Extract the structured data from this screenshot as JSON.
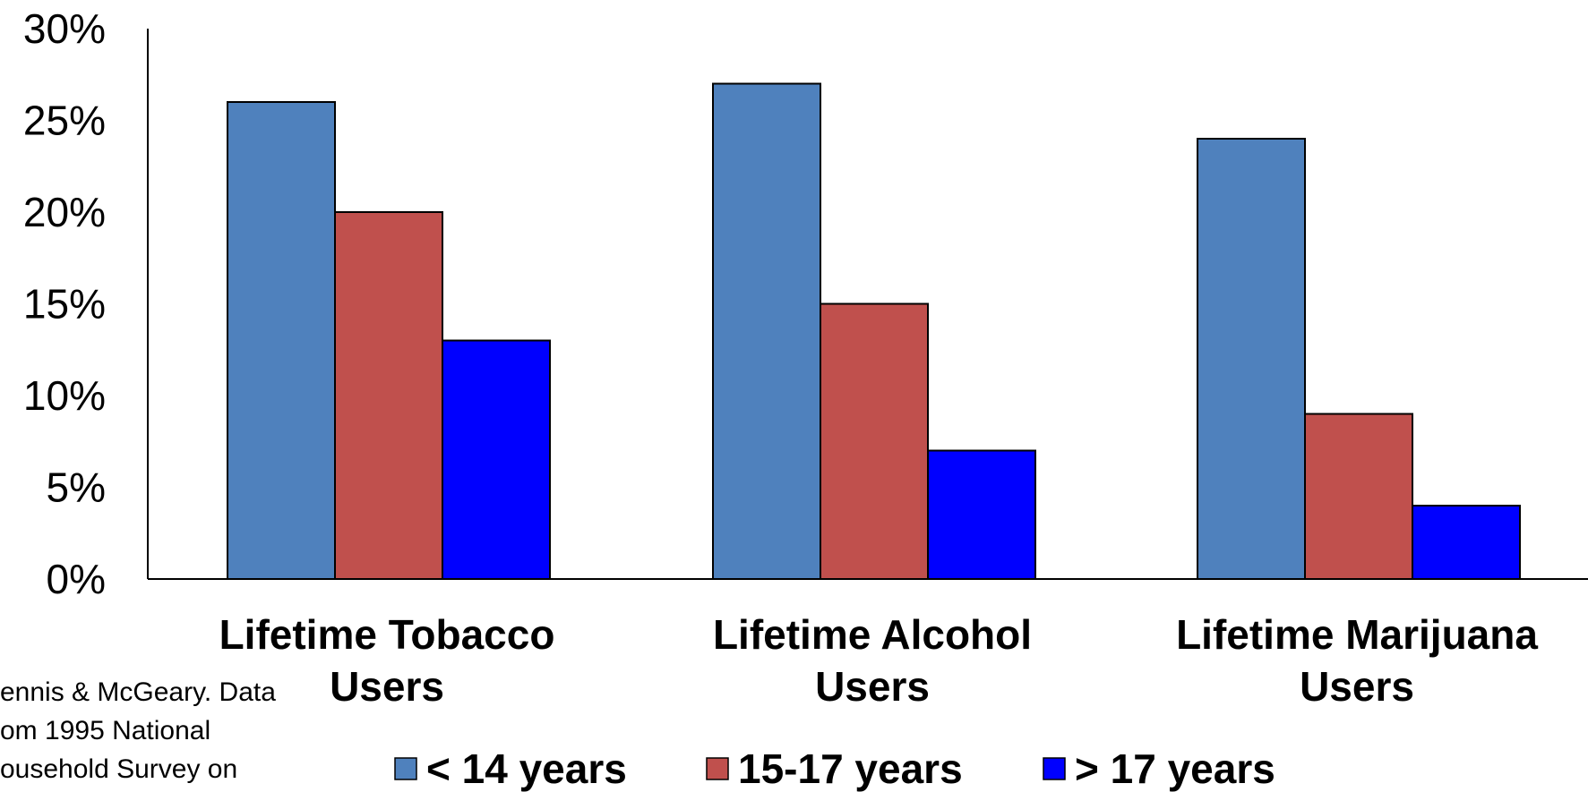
{
  "chart_data": {
    "type": "bar",
    "title": "",
    "xlabel": "",
    "ylabel": "",
    "categories": [
      [
        "Lifetime Tobacco",
        "Users"
      ],
      [
        "Lifetime Alcohol",
        "Users"
      ],
      [
        "Lifetime Marijuana",
        "Users"
      ]
    ],
    "series": [
      {
        "name": "< 14 years",
        "color": "#4f81bd",
        "values": [
          26,
          27,
          24
        ]
      },
      {
        "name": "15-17 years",
        "color": "#c0504d",
        "values": [
          20,
          15,
          9
        ]
      },
      {
        "name": "> 17 years",
        "color": "#0000ff",
        "values": [
          13,
          7,
          4
        ]
      }
    ],
    "ylim": [
      0,
      30
    ],
    "yticks": [
      "0%",
      "5%",
      "10%",
      "15%",
      "20%",
      "25%",
      "30%"
    ],
    "grid": false,
    "legend_position": "bottom"
  },
  "source_note": [
    "ennis & McGeary. Data",
    "om 1995 National",
    "ousehold Survey on"
  ]
}
